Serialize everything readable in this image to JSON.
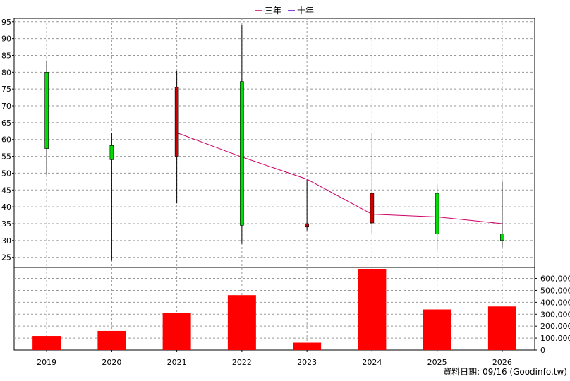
{
  "chart_data": {
    "type": "candlestick+line+bar",
    "categories": [
      "2019",
      "2020",
      "2021",
      "2022",
      "2023",
      "2024",
      "2025",
      "2026"
    ],
    "legend": [
      {
        "label": "三年",
        "color": "#cc0066"
      },
      {
        "label": "十年",
        "color": "#6600cc"
      }
    ],
    "price_axis": {
      "min": 22,
      "max": 96,
      "ticks": [
        25,
        30,
        35,
        40,
        45,
        50,
        55,
        60,
        65,
        70,
        75,
        80,
        85,
        90,
        95
      ]
    },
    "volume_axis": {
      "min": 0,
      "max": 680000,
      "ticks": [
        0,
        100000,
        200000,
        300000,
        400000,
        500000,
        600000
      ],
      "tick_labels": [
        "0",
        "100,000",
        "200,000",
        "300,000",
        "400,000",
        "500,000",
        "600,000"
      ]
    },
    "candles": [
      {
        "year": "2019",
        "open": 57.3,
        "close": 80.0,
        "high": 83.5,
        "low": 49.5
      },
      {
        "year": "2020",
        "open": 54.0,
        "close": 58.2,
        "high": 62.0,
        "low": 24.0
      },
      {
        "year": "2021",
        "open": 75.5,
        "close": 55.0,
        "high": 80.5,
        "low": 41.0
      },
      {
        "year": "2022",
        "open": 34.5,
        "close": 77.2,
        "high": 94.0,
        "low": 29.0
      },
      {
        "year": "2023",
        "open": 35.0,
        "close": 34.0,
        "high": 48.0,
        "low": 33.0
      },
      {
        "year": "2024",
        "open": 44.0,
        "close": 35.2,
        "high": 62.0,
        "low": 32.0
      },
      {
        "year": "2025",
        "open": 32.0,
        "close": 44.0,
        "high": 46.5,
        "low": 27.0
      },
      {
        "year": "2026",
        "open": 30.0,
        "close": 32.0,
        "high": 47.5,
        "low": 28.0
      }
    ],
    "series": [
      {
        "name": "三年",
        "color": "#cc0066",
        "values": [
          null,
          null,
          62.0,
          54.8,
          48.2,
          37.8,
          37.0,
          35.0
        ]
      }
    ],
    "volume": [
      118000,
      160000,
      310000,
      460000,
      62000,
      680000,
      340000,
      365000
    ],
    "colors": {
      "up": "#00dd00",
      "down": "#cc0000",
      "volume": "#ff0000",
      "grid": "#999999",
      "axis": "#000000"
    }
  },
  "footer": {
    "text": "資料日期: 09/16  (Goodinfo.tw)"
  }
}
